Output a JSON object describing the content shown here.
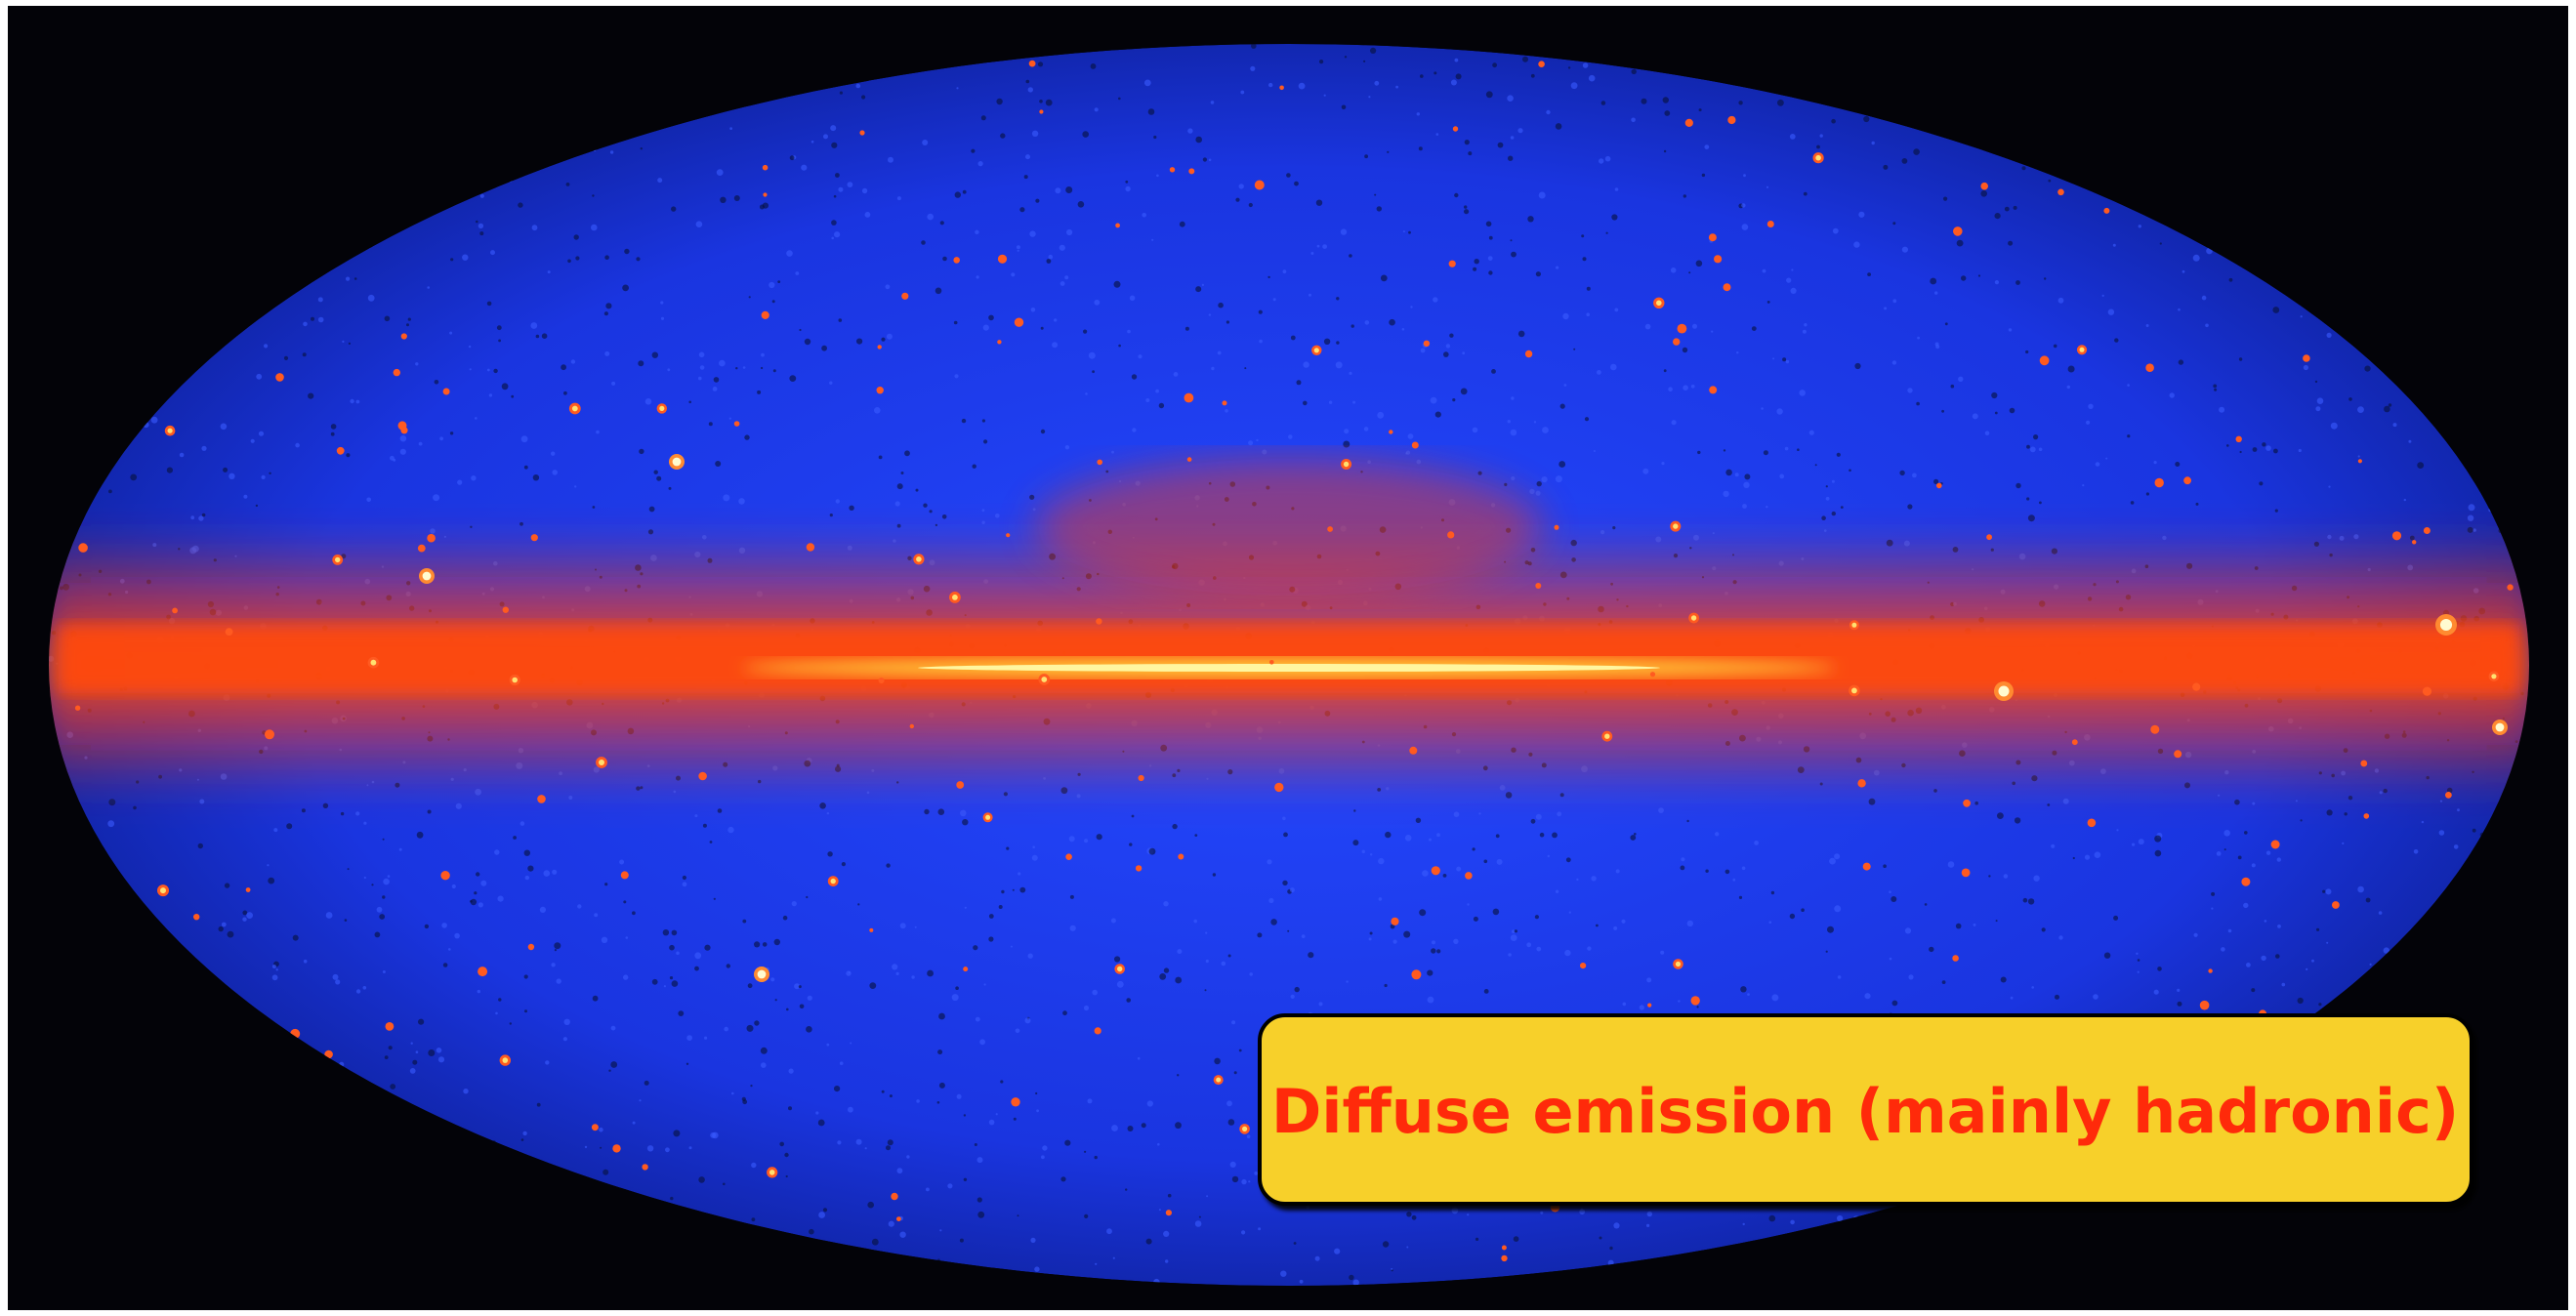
{
  "annotation": {
    "text": "Diffuse emission (mainly hadronic)"
  }
}
